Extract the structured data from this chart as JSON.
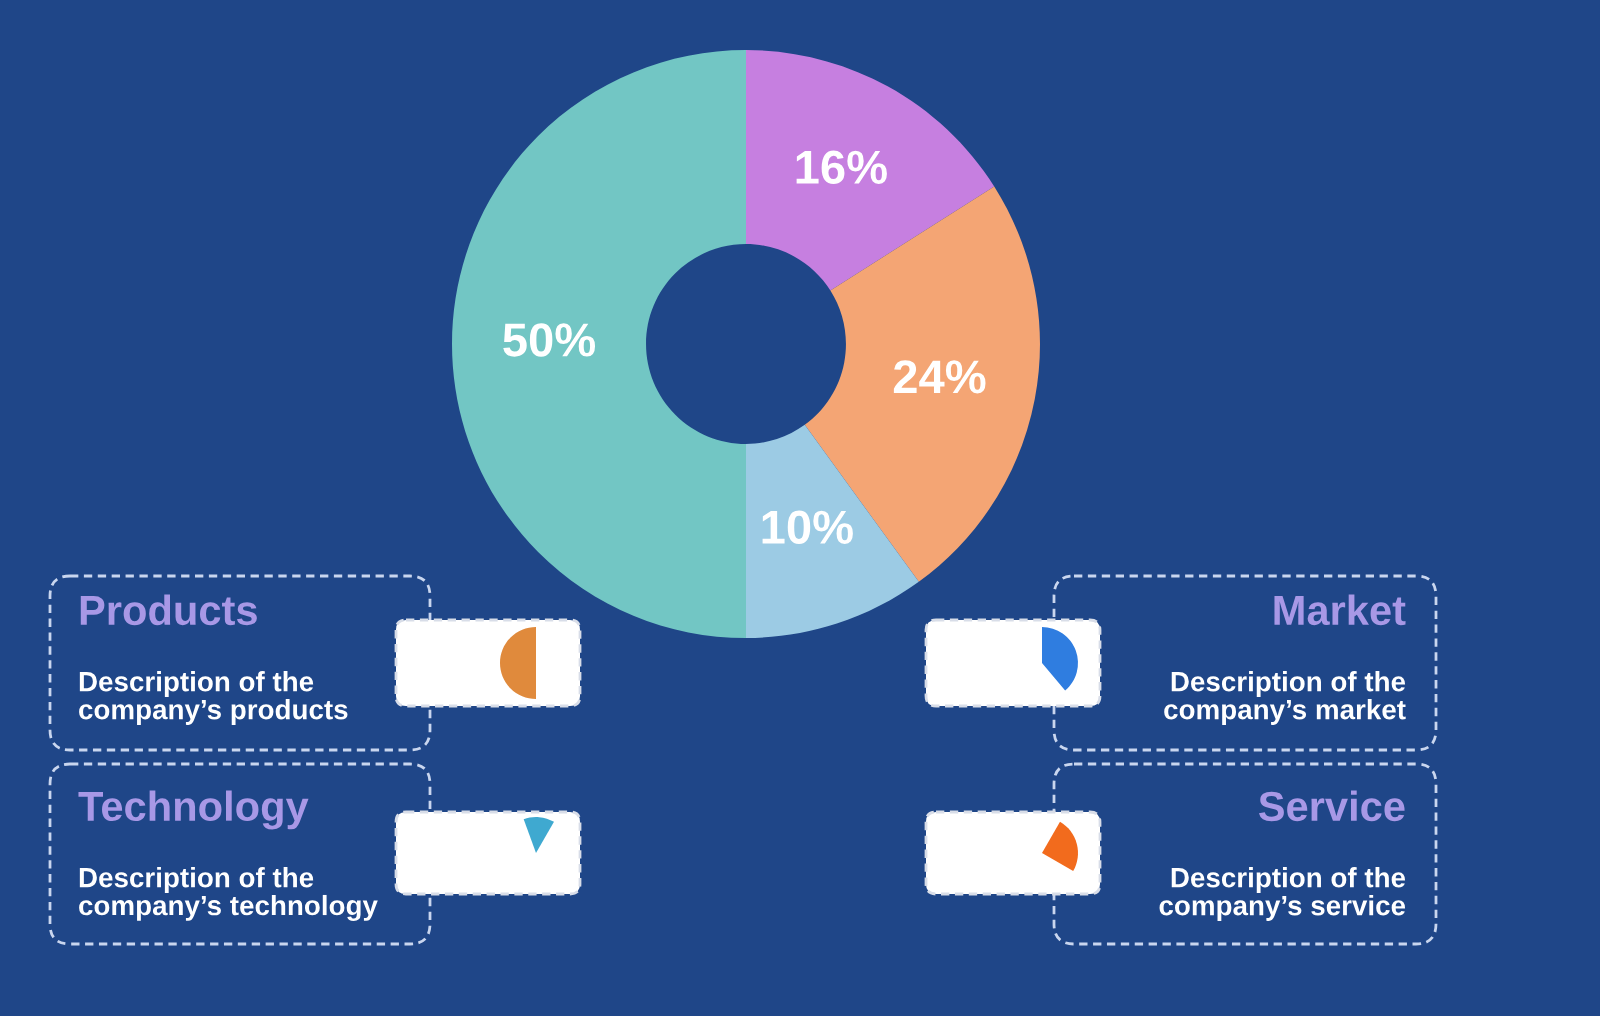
{
  "chart_data": {
    "type": "donut",
    "categories": [
      null,
      null,
      null,
      null
    ],
    "values": [
      16,
      24,
      10,
      50
    ],
    "colors": [
      "#c67fe0",
      "#f4a574",
      "#9ccbe4",
      "#72c6c4"
    ],
    "value_labels": [
      "16%",
      "24%",
      "10%",
      "50%"
    ],
    "annotations": [
      "Products",
      "Description of the\ncompany’s products",
      "Market",
      "Description of the\ncompany’s market",
      "Technology",
      "Description of the\ncompany’s technology",
      "Service",
      "Description of the\ncompany’s service"
    ]
  }
}
